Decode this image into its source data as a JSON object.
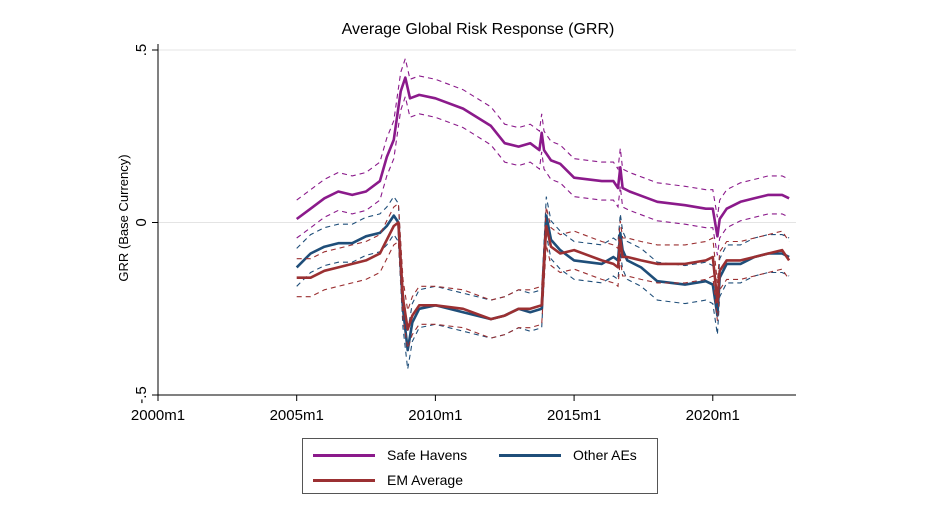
{
  "chart_data": {
    "type": "line",
    "title": "Average Global Risk Response (GRR)",
    "xlabel": "",
    "ylabel": "GRR (Base Currency)",
    "xlim": [
      "2000m1",
      "2023m1"
    ],
    "ylim": [
      -0.5,
      0.5
    ],
    "x_ticks": [
      "2000m1",
      "2005m1",
      "2010m1",
      "2015m1",
      "2020m1"
    ],
    "y_ticks": [
      ".5",
      "0",
      "-.5"
    ],
    "y_tick_values": [
      0.5,
      0,
      -0.5
    ],
    "grid": "horizontal",
    "legend_position": "bottom",
    "colors": {
      "safe_havens": "#8b1a8b",
      "other_aes": "#1f4e79",
      "em_average": "#9b3032"
    },
    "series": [
      {
        "name": "Safe Havens",
        "color": "#8b1a8b",
        "x": [
          "2005m1",
          "2005m7",
          "2006m1",
          "2006m7",
          "2007m1",
          "2007m7",
          "2008m1",
          "2008m4",
          "2008m7",
          "2008m10",
          "2008m12",
          "2009m2",
          "2009m6",
          "2010m1",
          "2011m1",
          "2012m1",
          "2012m7",
          "2013m1",
          "2013m6",
          "2013m10",
          "2013m11",
          "2013m12",
          "2014m3",
          "2014m7",
          "2015m1",
          "2016m1",
          "2016m6",
          "2016m8",
          "2016m9",
          "2016m10",
          "2017m1",
          "2018m1",
          "2019m1",
          "2019m10",
          "2020m1",
          "2020m3",
          "2020m4",
          "2020m7",
          "2021m1",
          "2021m7",
          "2022m1",
          "2022m7",
          "2022m10"
        ],
        "values": [
          0.01,
          0.04,
          0.07,
          0.09,
          0.08,
          0.09,
          0.12,
          0.19,
          0.24,
          0.38,
          0.42,
          0.36,
          0.37,
          0.36,
          0.33,
          0.28,
          0.23,
          0.22,
          0.23,
          0.21,
          0.26,
          0.21,
          0.18,
          0.17,
          0.13,
          0.12,
          0.12,
          0.1,
          0.16,
          0.1,
          0.09,
          0.06,
          0.05,
          0.04,
          0.04,
          -0.04,
          0.01,
          0.04,
          0.06,
          0.07,
          0.08,
          0.08,
          0.07
        ]
      },
      {
        "name": "Other AEs",
        "color": "#1f4e79",
        "x": [
          "2005m1",
          "2005m7",
          "2006m1",
          "2006m7",
          "2007m1",
          "2007m7",
          "2008m1",
          "2008m4",
          "2008m7",
          "2008m9",
          "2008m11",
          "2009m1",
          "2009m3",
          "2009m6",
          "2010m1",
          "2011m1",
          "2012m1",
          "2012m7",
          "2013m1",
          "2013m6",
          "2013m11",
          "2014m1",
          "2014m3",
          "2014m7",
          "2015m1",
          "2016m1",
          "2016m6",
          "2016m8",
          "2016m9",
          "2016m10",
          "2016m12",
          "2017m6",
          "2018m1",
          "2019m1",
          "2019m10",
          "2020m1",
          "2020m3",
          "2020m4",
          "2020m7",
          "2021m1",
          "2021m7",
          "2022m1",
          "2022m7",
          "2022m10"
        ],
        "values": [
          -0.13,
          -0.09,
          -0.07,
          -0.06,
          -0.06,
          -0.04,
          -0.03,
          -0.01,
          0.02,
          0.0,
          -0.25,
          -0.37,
          -0.29,
          -0.25,
          -0.24,
          -0.26,
          -0.28,
          -0.27,
          -0.25,
          -0.26,
          -0.25,
          0.02,
          -0.05,
          -0.08,
          -0.11,
          -0.12,
          -0.1,
          -0.11,
          -0.03,
          -0.08,
          -0.11,
          -0.13,
          -0.17,
          -0.18,
          -0.17,
          -0.18,
          -0.27,
          -0.16,
          -0.12,
          -0.12,
          -0.1,
          -0.09,
          -0.09,
          -0.1
        ]
      },
      {
        "name": "EM Average",
        "color": "#9b3032",
        "x": [
          "2005m1",
          "2005m7",
          "2006m1",
          "2006m7",
          "2007m1",
          "2007m7",
          "2008m1",
          "2008m4",
          "2008m7",
          "2008m9",
          "2008m11",
          "2009m1",
          "2009m3",
          "2009m6",
          "2010m1",
          "2011m1",
          "2012m1",
          "2012m7",
          "2013m1",
          "2013m6",
          "2013m11",
          "2014m1",
          "2014m3",
          "2014m7",
          "2015m1",
          "2016m1",
          "2016m6",
          "2016m8",
          "2016m9",
          "2016m10",
          "2016m12",
          "2017m6",
          "2018m1",
          "2019m1",
          "2019m10",
          "2020m1",
          "2020m3",
          "2020m4",
          "2020m7",
          "2021m1",
          "2021m7",
          "2022m1",
          "2022m7",
          "2022m10"
        ],
        "values": [
          -0.16,
          -0.16,
          -0.14,
          -0.13,
          -0.12,
          -0.11,
          -0.09,
          -0.05,
          -0.01,
          0.0,
          -0.22,
          -0.31,
          -0.27,
          -0.24,
          -0.24,
          -0.25,
          -0.28,
          -0.27,
          -0.25,
          -0.25,
          -0.24,
          -0.01,
          -0.07,
          -0.09,
          -0.08,
          -0.11,
          -0.12,
          -0.13,
          -0.05,
          -0.1,
          -0.1,
          -0.11,
          -0.12,
          -0.12,
          -0.11,
          -0.1,
          -0.23,
          -0.14,
          -0.11,
          -0.11,
          -0.1,
          -0.09,
          -0.08,
          -0.11
        ]
      }
    ],
    "ci_halfwidth": 0.055
  }
}
